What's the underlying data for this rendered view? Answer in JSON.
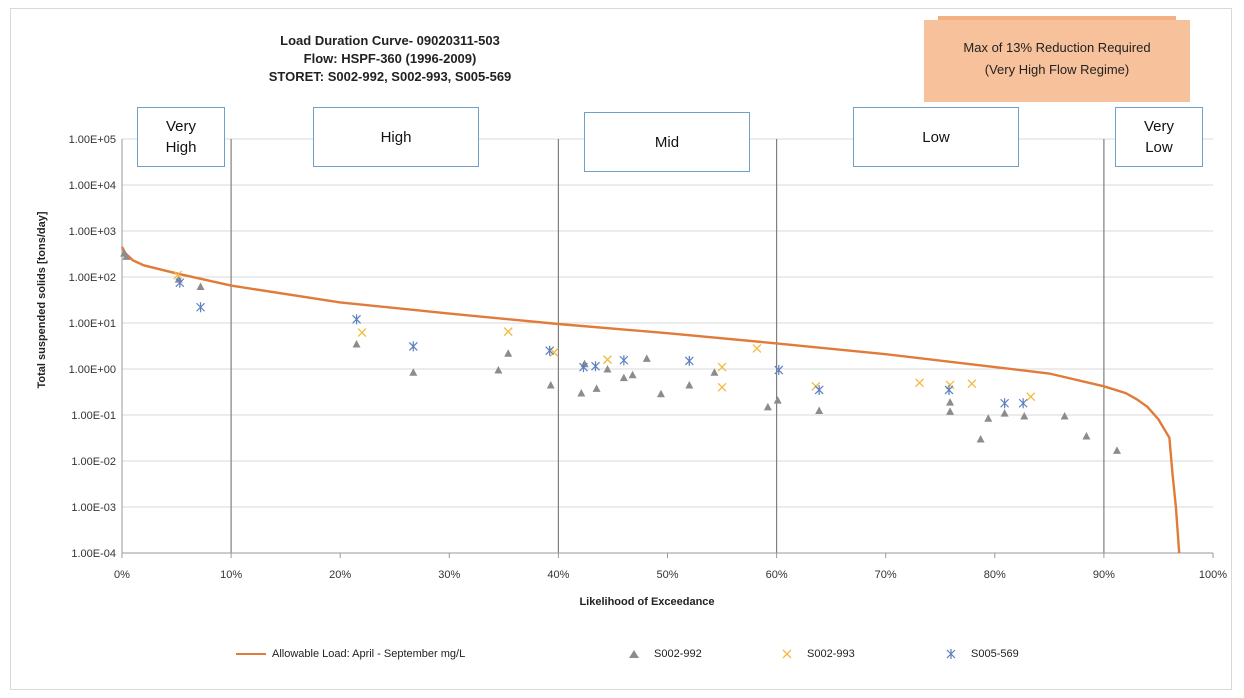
{
  "chart_data": {
    "type": "scatter",
    "title_lines": [
      "Load Duration Curve- 09020311-503",
      "Flow: HSPF-360 (1996-2009)",
      "STORET: S002-992, S002-993, S005-569"
    ],
    "xlabel": "Likelihood of Exceedance",
    "ylabel": "Total suspended solids [tons/day]",
    "x_range": [
      0,
      100
    ],
    "y_range": [
      0.0001,
      100000
    ],
    "y_scale": "log",
    "x_ticks": [
      "0%",
      "10%",
      "20%",
      "30%",
      "40%",
      "50%",
      "60%",
      "70%",
      "80%",
      "90%",
      "100%"
    ],
    "y_ticks": [
      "1.00E-04",
      "1.00E-03",
      "1.00E-02",
      "1.00E-01",
      "1.00E+00",
      "1.00E+01",
      "1.00E+02",
      "1.00E+03",
      "1.00E+04",
      "1.00E+05"
    ],
    "gridlines": "horizontal",
    "flow_regime_dividers": [
      10,
      40,
      60,
      90
    ],
    "flow_regimes": [
      {
        "label": "Very\nHigh"
      },
      {
        "label": "High"
      },
      {
        "label": "Mid"
      },
      {
        "label": "Low"
      },
      {
        "label": "Very\nLow"
      }
    ],
    "annotation": {
      "line1": "Max of 13% Reduction Required",
      "line2": "(Very High Flow Regime)"
    },
    "series": [
      {
        "name": "Allowable Load: April - September mg/L",
        "kind": "line",
        "color": "#e07b39",
        "points": [
          [
            0,
            450
          ],
          [
            0.3,
            330
          ],
          [
            1,
            230
          ],
          [
            2,
            180
          ],
          [
            5,
            120
          ],
          [
            10,
            65
          ],
          [
            20,
            28
          ],
          [
            30,
            16
          ],
          [
            40,
            9.5
          ],
          [
            50,
            6
          ],
          [
            60,
            3.6
          ],
          [
            70,
            2.1
          ],
          [
            80,
            1.1
          ],
          [
            85,
            0.8
          ],
          [
            90,
            0.42
          ],
          [
            92,
            0.3
          ],
          [
            93,
            0.22
          ],
          [
            94,
            0.15
          ],
          [
            95,
            0.08
          ],
          [
            96,
            0.032
          ],
          [
            96.3,
            0.005
          ],
          [
            96.6,
            0.001
          ],
          [
            96.9,
            0.0001
          ]
        ]
      },
      {
        "name": "S002-992",
        "kind": "triangle",
        "color": "#8c8c8c",
        "points": [
          [
            0.2,
            330
          ],
          [
            0.4,
            280
          ],
          [
            5.2,
            90
          ],
          [
            7.2,
            62
          ],
          [
            21.5,
            3.5
          ],
          [
            26.7,
            0.85
          ],
          [
            34.5,
            0.95
          ],
          [
            35.4,
            2.2
          ],
          [
            39.3,
            0.45
          ],
          [
            42.1,
            0.3
          ],
          [
            42.4,
            1.3
          ],
          [
            43.5,
            0.38
          ],
          [
            44.5,
            1.0
          ],
          [
            46.0,
            0.65
          ],
          [
            46.8,
            0.75
          ],
          [
            48.1,
            1.7
          ],
          [
            49.4,
            0.29
          ],
          [
            52.0,
            0.45
          ],
          [
            54.3,
            0.85
          ],
          [
            59.2,
            0.15
          ],
          [
            60.1,
            0.21
          ],
          [
            63.9,
            0.125
          ],
          [
            75.9,
            0.19
          ],
          [
            75.9,
            0.12
          ],
          [
            78.7,
            0.03
          ],
          [
            79.4,
            0.085
          ],
          [
            80.9,
            0.11
          ],
          [
            82.7,
            0.095
          ],
          [
            86.4,
            0.095
          ],
          [
            88.4,
            0.035
          ],
          [
            91.2,
            0.017
          ]
        ]
      },
      {
        "name": "S002-993",
        "kind": "x",
        "color": "#f4b93e",
        "points": [
          [
            5.1,
            110
          ],
          [
            22.0,
            6.2
          ],
          [
            35.4,
            6.5
          ],
          [
            39.6,
            2.3
          ],
          [
            44.5,
            1.6
          ],
          [
            55.0,
            1.1
          ],
          [
            55.0,
            0.4
          ],
          [
            58.2,
            2.8
          ],
          [
            63.6,
            0.42
          ],
          [
            73.1,
            0.5
          ],
          [
            75.9,
            0.45
          ],
          [
            77.9,
            0.48
          ],
          [
            83.3,
            0.25
          ]
        ]
      },
      {
        "name": "S005-569",
        "kind": "asterisk",
        "color": "#5b7fbf",
        "points": [
          [
            5.3,
            75
          ],
          [
            7.2,
            22
          ],
          [
            21.5,
            12
          ],
          [
            26.7,
            3.1
          ],
          [
            39.2,
            2.5
          ],
          [
            42.3,
            1.1
          ],
          [
            43.4,
            1.15
          ],
          [
            46.0,
            1.55
          ],
          [
            52.0,
            1.5
          ],
          [
            60.2,
            0.95
          ],
          [
            63.9,
            0.35
          ],
          [
            75.8,
            0.35
          ],
          [
            80.9,
            0.18
          ],
          [
            82.6,
            0.18
          ]
        ]
      }
    ]
  }
}
